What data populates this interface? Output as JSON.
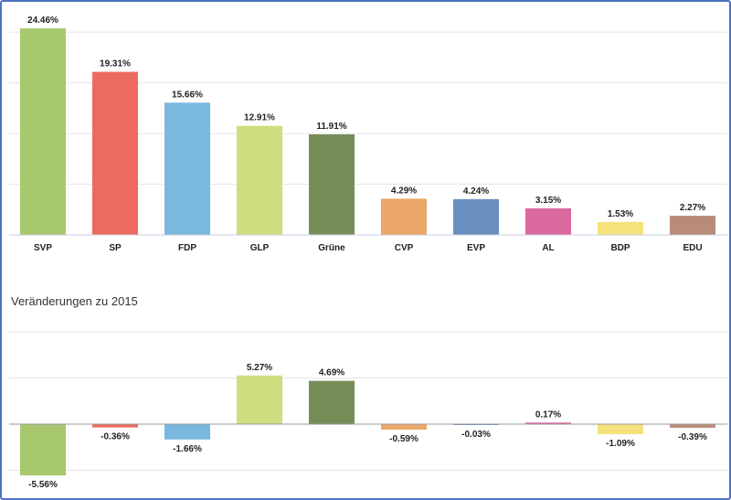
{
  "chart_data": [
    {
      "type": "bar",
      "categories": [
        "SVP",
        "SP",
        "FDP",
        "GLP",
        "Grüne",
        "CVP",
        "EVP",
        "AL",
        "BDP",
        "EDU"
      ],
      "values": [
        24.46,
        19.31,
        15.66,
        12.91,
        11.91,
        4.29,
        4.24,
        3.15,
        1.53,
        2.27
      ],
      "labels": [
        "24.46%",
        "19.31%",
        "15.66%",
        "12.91%",
        "11.91%",
        "4.29%",
        "4.24%",
        "3.15%",
        "1.53%",
        "2.27%"
      ],
      "colors": [
        "#a8c870",
        "#ec6b5e",
        "#7ab8e0",
        "#d0dc80",
        "#768d58",
        "#eba66a",
        "#6a8fbf",
        "#dc68a0",
        "#f5e27a",
        "#b98c78"
      ],
      "ylim": [
        0,
        24.46
      ],
      "grid": true,
      "gridlines": [
        6,
        12,
        18,
        24
      ]
    },
    {
      "type": "bar",
      "title": "Veränderungen zu 2015",
      "categories": [
        "SVP",
        "SP",
        "FDP",
        "GLP",
        "Grüne",
        "CVP",
        "EVP",
        "AL",
        "BDP",
        "EDU"
      ],
      "values": [
        -5.56,
        -0.36,
        -1.66,
        5.27,
        4.69,
        -0.59,
        -0.03,
        0.17,
        -1.09,
        -0.39
      ],
      "labels": [
        "-5.56%",
        "-0.36%",
        "-1.66%",
        "5.27%",
        "4.69%",
        "-0.59%",
        "-0.03%",
        "0.17%",
        "-1.09%",
        "-0.39%"
      ],
      "colors": [
        "#a8c870",
        "#ec6b5e",
        "#7ab8e0",
        "#d0dc80",
        "#768d58",
        "#eba66a",
        "#6a8fbf",
        "#dc68a0",
        "#f5e27a",
        "#b98c78"
      ],
      "ylim": [
        -5.56,
        10
      ],
      "grid": true,
      "gridlines": [
        -5,
        0,
        5,
        10
      ]
    }
  ]
}
